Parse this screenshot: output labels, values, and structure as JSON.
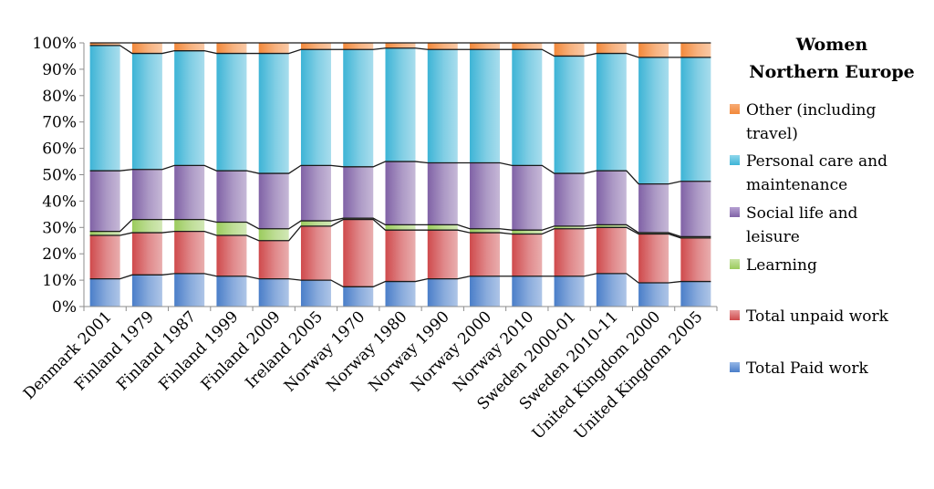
{
  "chart_data": {
    "type": "bar",
    "stacked": "percent",
    "title": "Women\nNorthern Europe",
    "xlabel": "",
    "ylabel": "",
    "ylim": [
      0,
      100
    ],
    "y_ticks": [
      "0%",
      "10%",
      "20%",
      "30%",
      "40%",
      "50%",
      "60%",
      "70%",
      "80%",
      "90%",
      "100%"
    ],
    "categories": [
      "Denmark 2001",
      "Finland 1979",
      "Finland 1987",
      "Finland 1999",
      "Finland 2009",
      "Ireland 2005",
      "Norway 1970",
      "Norway 1980",
      "Norway 1990",
      "Norway 2000",
      "Norway 2010",
      "Sweden 2000-01",
      "Sweden 2010-11",
      "United Kingdom 2000",
      "United Kingdom 2005"
    ],
    "series": [
      {
        "name": "Total Paid work",
        "color": "#4a7ec9",
        "values": [
          10.5,
          12.0,
          12.5,
          11.5,
          10.5,
          10.0,
          7.5,
          9.5,
          10.5,
          11.5,
          11.5,
          11.5,
          12.5,
          9.0,
          9.5
        ]
      },
      {
        "name": "Total unpaid work",
        "color": "#cf4a4c",
        "values": [
          16.5,
          16.0,
          16.0,
          15.5,
          14.5,
          20.5,
          25.5,
          19.5,
          18.5,
          16.5,
          16.0,
          18.0,
          17.5,
          18.5,
          16.5
        ]
      },
      {
        "name": "Learning",
        "color": "#9bcb5d",
        "values": [
          1.5,
          5.0,
          4.5,
          5.0,
          4.5,
          2.0,
          0.5,
          2.0,
          2.0,
          1.5,
          1.5,
          1.0,
          1.0,
          0.5,
          0.5
        ]
      },
      {
        "name": "Social life and leisure",
        "color": "#8062a6",
        "values": [
          23.0,
          19.0,
          20.5,
          19.5,
          21.0,
          21.0,
          19.5,
          24.0,
          23.5,
          25.0,
          24.5,
          20.0,
          20.5,
          18.5,
          21.0
        ]
      },
      {
        "name": "Personal care and maintenance",
        "color": "#3db4d6",
        "values": [
          47.5,
          44.0,
          43.5,
          44.5,
          45.5,
          44.0,
          44.5,
          43.0,
          43.0,
          43.0,
          44.0,
          44.5,
          44.5,
          48.0,
          47.0
        ]
      },
      {
        "name": "Other (including travel)",
        "color": "#f2883a",
        "values": [
          1.0,
          4.0,
          3.0,
          4.0,
          4.0,
          2.5,
          2.5,
          2.0,
          2.5,
          2.5,
          2.5,
          5.0,
          4.0,
          5.5,
          5.5
        ]
      }
    ],
    "legend_order": [
      "Other (including travel)",
      "Personal care and maintenance",
      "Social life and leisure",
      "Learning",
      "Total unpaid work",
      "Total Paid work"
    ],
    "legend_position": "right",
    "grid": false
  },
  "legend": {
    "title_line1": "Women",
    "title_line2": "Northern Europe",
    "items": [
      {
        "line1": "Other (including",
        "line2": "travel)",
        "color": "#f2883a"
      },
      {
        "line1": "Personal care and",
        "line2": "maintenance",
        "color": "#3db4d6"
      },
      {
        "line1": "Social life and",
        "line2": "leisure",
        "color": "#8062a6"
      },
      {
        "line1": "Learning",
        "line2": "",
        "color": "#9bcb5d"
      },
      {
        "line1": "Total unpaid work",
        "line2": "",
        "color": "#cf4a4c"
      },
      {
        "line1": "Total Paid work",
        "line2": "",
        "color": "#4a7ec9"
      }
    ]
  }
}
